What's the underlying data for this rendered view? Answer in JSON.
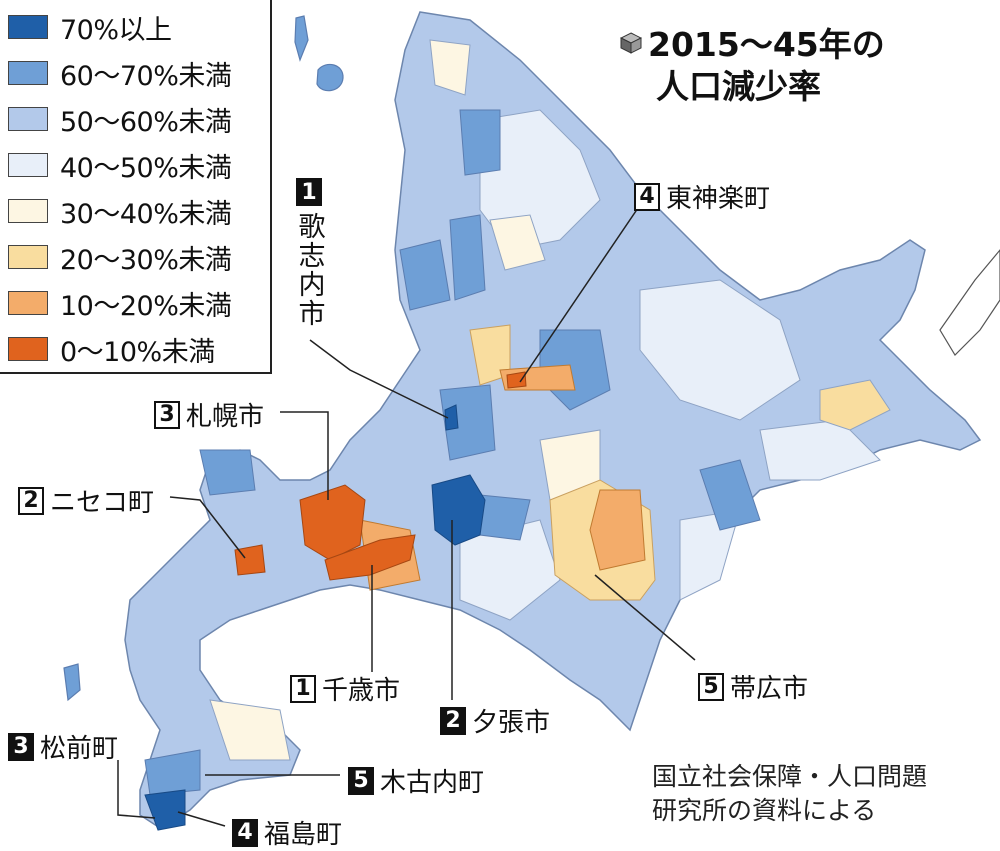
{
  "title": {
    "line1": "2015～45年の",
    "line2": "人口減少率"
  },
  "legend": [
    {
      "label": "70%以上",
      "color": "#1f5fa8"
    },
    {
      "label": "60～70%未満",
      "color": "#6f9fd6"
    },
    {
      "label": "50～60%未満",
      "color": "#b3c9ea"
    },
    {
      "label": "40～50%未満",
      "color": "#e8eff9"
    },
    {
      "label": "30～40%未満",
      "color": "#fdf6e3"
    },
    {
      "label": "20～30%未満",
      "color": "#f9dd9f"
    },
    {
      "label": "10～20%未満",
      "color": "#f3ac6a"
    },
    {
      "label": "0～10%未満",
      "color": "#e0631e"
    }
  ],
  "callouts": {
    "utashinai": {
      "rank": "1",
      "name": "歌志内市"
    },
    "chitose": {
      "rank": "1",
      "name": "千歳市"
    },
    "yubari": {
      "rank": "2",
      "name": "夕張市"
    },
    "niseko": {
      "rank": "2",
      "name": "ニセコ町"
    },
    "sapporo": {
      "rank": "3",
      "name": "札幌市"
    },
    "matsumae": {
      "rank": "3",
      "name": "松前町"
    },
    "higashikagura": {
      "rank": "4",
      "name": "東神楽町"
    },
    "fukushima": {
      "rank": "4",
      "name": "福島町"
    },
    "obihiro": {
      "rank": "5",
      "name": "帯広市"
    },
    "kikonai": {
      "rank": "5",
      "name": "木古内町"
    }
  },
  "source": {
    "line1": "国立社会保障・人口問題",
    "line2": "研究所の資料による"
  }
}
